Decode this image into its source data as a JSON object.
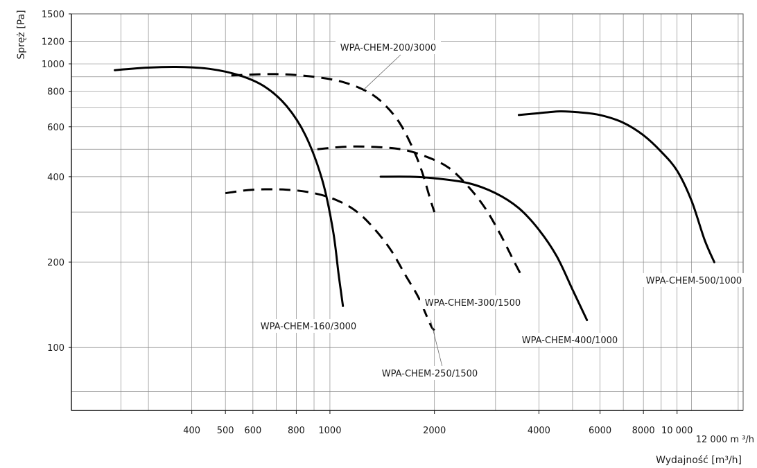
{
  "chart_data": {
    "type": "line",
    "title": "",
    "xlabel": "Wydajność [m³/h]",
    "ylabel": "Spręż [Pa]",
    "x_scale": "log",
    "y_scale": "log",
    "xlim": [
      180,
      15500
    ],
    "ylim": [
      60,
      1500
    ],
    "grid": true,
    "legend": "none",
    "y_ticks": [
      {
        "value": 100,
        "label": "100"
      },
      {
        "value": 200,
        "label": "200"
      },
      {
        "value": 400,
        "label": "400"
      },
      {
        "value": 600,
        "label": "600"
      },
      {
        "value": 800,
        "label": "800"
      },
      {
        "value": 1000,
        "label": "1000"
      },
      {
        "value": 1200,
        "label": "1200"
      },
      {
        "value": 1500,
        "label": "1500"
      }
    ],
    "x_ticks": [
      {
        "value": 400,
        "label": "400"
      },
      {
        "value": 500,
        "label": "500"
      },
      {
        "value": 600,
        "label": "600"
      },
      {
        "value": 800,
        "label": "800"
      },
      {
        "value": 1000,
        "label": "1000"
      },
      {
        "value": 2000,
        "label": "2000"
      },
      {
        "value": 4000,
        "label": "4000"
      },
      {
        "value": 6000,
        "label": "6000"
      },
      {
        "value": 8000,
        "label": "8000"
      },
      {
        "value": 10000,
        "label": "10 000"
      }
    ],
    "x_end_label": "12 000 m ³/h",
    "x_minor_grid": [
      250,
      300,
      700,
      900,
      3000,
      5000,
      7000,
      9000,
      11000,
      15000
    ],
    "y_minor_grid": [
      70,
      300,
      500,
      700,
      900
    ],
    "series": [
      {
        "name": "WPA-CHEM-160/3000",
        "dash": false,
        "x": [
          240,
          300,
          370,
          450,
          550,
          650,
          750,
          850,
          950,
          1020,
          1060,
          1090
        ],
        "y": [
          950,
          970,
          975,
          960,
          910,
          830,
          710,
          560,
          390,
          260,
          180,
          140
        ],
        "label_anchor": [
          1060,
          140
        ],
        "label_pos": [
          445,
          475
        ]
      },
      {
        "name": "WPA-CHEM-200/3000",
        "dash": true,
        "x": [
          520,
          700,
          900,
          1100,
          1300,
          1450,
          1600,
          1750,
          1850,
          1950,
          2000
        ],
        "y": [
          910,
          920,
          900,
          860,
          790,
          710,
          610,
          490,
          410,
          330,
          300
        ],
        "label_anchor": [
          1250,
          810
        ],
        "label_pos": [
          560,
          73
        ]
      },
      {
        "name": "WPA-CHEM-250/1500",
        "dash": true,
        "x": [
          500,
          600,
          750,
          900,
          1050,
          1200,
          1350,
          1500,
          1650,
          1800,
          1950,
          2000
        ],
        "y": [
          350,
          360,
          360,
          350,
          330,
          300,
          260,
          220,
          180,
          150,
          120,
          115
        ],
        "label_anchor": [
          1950,
          125
        ],
        "label_pos": [
          620,
          543
        ]
      },
      {
        "name": "WPA-CHEM-300/1500",
        "dash": true,
        "x": [
          920,
          1100,
          1300,
          1600,
          1900,
          2200,
          2500,
          2800,
          3100,
          3400,
          3600
        ],
        "y": [
          500,
          510,
          510,
          500,
          470,
          430,
          370,
          310,
          250,
          200,
          175
        ],
        "label_anchor": [
          3400,
          200
        ],
        "label_pos": [
          682,
          441
        ]
      },
      {
        "name": "WPA-CHEM-400/1000",
        "dash": false,
        "x": [
          1400,
          1700,
          2000,
          2500,
          3000,
          3500,
          4000,
          4500,
          5000,
          5500
        ],
        "y": [
          400,
          400,
          395,
          380,
          350,
          310,
          260,
          210,
          160,
          125
        ],
        "label_anchor": [
          5500,
          125
        ],
        "label_pos": [
          822,
          495
        ]
      },
      {
        "name": "WPA-CHEM-500/1000",
        "dash": false,
        "x": [
          3500,
          4000,
          4600,
          5200,
          6000,
          7000,
          8000,
          9000,
          10000,
          11000,
          12000,
          12800
        ],
        "y": [
          660,
          670,
          680,
          675,
          660,
          620,
          560,
          490,
          420,
          330,
          240,
          200
        ],
        "label_anchor": [
          12800,
          200
        ],
        "label_pos": [
          1001,
          409
        ]
      }
    ]
  }
}
